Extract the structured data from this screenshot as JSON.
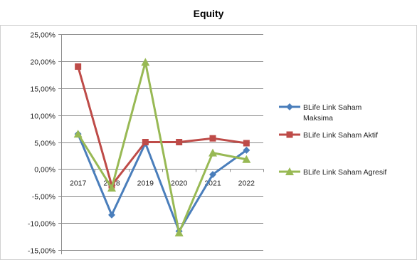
{
  "chart_data": {
    "type": "line",
    "title": "Equity",
    "xlabel": "",
    "ylabel": "",
    "categories": [
      "2017",
      "2018",
      "2019",
      "2020",
      "2021",
      "2022"
    ],
    "y_ticks": [
      "25,00%",
      "20,00%",
      "15,00%",
      "10,00%",
      "5,00%",
      "0,00%",
      "-5,00%",
      "-10,00%",
      "-15,00%"
    ],
    "ylim": [
      -15,
      25
    ],
    "y_unit": "percent",
    "grid": "horizontal major gridlines",
    "legend_position": "right",
    "series": [
      {
        "name": "BLife Link Saham Maksima",
        "legend_lines": [
          "BLife Link Saham",
          "Maksima"
        ],
        "color": "#4a7ebb",
        "marker": "diamond",
        "values": [
          6.5,
          -8.5,
          4.8,
          -11.5,
          -1.0,
          3.5
        ]
      },
      {
        "name": "BLife Link Saham Aktif",
        "legend_lines": [
          "BLife Link Saham Aktif"
        ],
        "color": "#be4b48",
        "marker": "square",
        "values": [
          19.0,
          -3.0,
          5.0,
          5.0,
          5.7,
          4.8
        ]
      },
      {
        "name": "BLife Link Saham Agresif",
        "legend_lines": [
          "BLife Link Saham Agresif"
        ],
        "color": "#98b954",
        "marker": "triangle",
        "values": [
          6.5,
          -3.5,
          19.8,
          -11.8,
          3.0,
          1.8
        ]
      }
    ]
  }
}
